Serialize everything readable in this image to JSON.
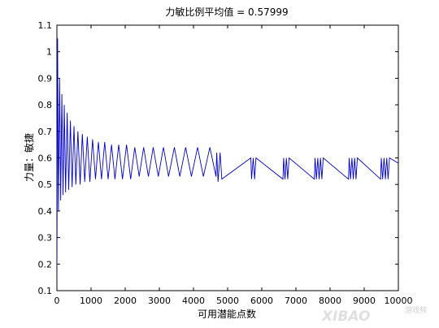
{
  "chart_data": {
    "type": "line",
    "title": "力敏比例平均值 = 0.57999",
    "xlabel": "可用潜能点数",
    "ylabel": "力量：敏捷",
    "xlim": [
      0,
      10000
    ],
    "ylim": [
      0.1,
      1.1
    ],
    "xticks": [
      0,
      1000,
      2000,
      3000,
      4000,
      5000,
      6000,
      7000,
      8000,
      9000,
      10000
    ],
    "yticks": [
      0.1,
      0.2,
      0.3,
      0.4,
      0.5,
      0.6,
      0.7,
      0.8,
      0.9,
      1,
      1.1
    ],
    "grid": false,
    "line_color": "#0000cc",
    "series": [
      {
        "points": [
          [
            0,
            0.14
          ],
          [
            20,
            1.05
          ],
          [
            45,
            0.4
          ],
          [
            80,
            0.9
          ],
          [
            110,
            0.44
          ],
          [
            145,
            0.84
          ],
          [
            180,
            0.46
          ],
          [
            215,
            0.8
          ],
          [
            255,
            0.47
          ],
          [
            300,
            0.77
          ],
          [
            345,
            0.48
          ],
          [
            395,
            0.74
          ],
          [
            445,
            0.49
          ],
          [
            500,
            0.72
          ],
          [
            555,
            0.5
          ],
          [
            615,
            0.7
          ],
          [
            680,
            0.5
          ],
          [
            745,
            0.69
          ],
          [
            815,
            0.51
          ],
          [
            890,
            0.68
          ],
          [
            965,
            0.51
          ],
          [
            1045,
            0.67
          ],
          [
            1130,
            0.52
          ],
          [
            1215,
            0.66
          ],
          [
            1305,
            0.52
          ],
          [
            1400,
            0.66
          ],
          [
            1500,
            0.52
          ],
          [
            1600,
            0.65
          ],
          [
            1700,
            0.52
          ],
          [
            1810,
            0.65
          ],
          [
            1920,
            0.52
          ],
          [
            2040,
            0.65
          ],
          [
            2160,
            0.52
          ],
          [
            2280,
            0.64
          ],
          [
            2410,
            0.53
          ],
          [
            2540,
            0.64
          ],
          [
            2680,
            0.53
          ],
          [
            2820,
            0.64
          ],
          [
            2970,
            0.53
          ],
          [
            3120,
            0.64
          ],
          [
            3270,
            0.53
          ],
          [
            3440,
            0.64
          ],
          [
            3600,
            0.53
          ],
          [
            3770,
            0.64
          ],
          [
            3940,
            0.53
          ],
          [
            4120,
            0.64
          ],
          [
            4290,
            0.53
          ],
          [
            4480,
            0.64
          ],
          [
            4660,
            0.53
          ],
          [
            4680,
            0.62
          ],
          [
            4720,
            0.51
          ],
          [
            4780,
            0.62
          ],
          [
            4830,
            0.52
          ],
          [
            5680,
            0.6
          ],
          [
            5700,
            0.52
          ],
          [
            5750,
            0.6
          ],
          [
            5790,
            0.52
          ],
          [
            5830,
            0.6
          ],
          [
            6620,
            0.52
          ],
          [
            6640,
            0.6
          ],
          [
            6680,
            0.52
          ],
          [
            6720,
            0.6
          ],
          [
            6760,
            0.52
          ],
          [
            6800,
            0.6
          ],
          [
            7540,
            0.52
          ],
          [
            7560,
            0.6
          ],
          [
            7600,
            0.52
          ],
          [
            7640,
            0.6
          ],
          [
            7680,
            0.52
          ],
          [
            7720,
            0.6
          ],
          [
            7760,
            0.52
          ],
          [
            7800,
            0.6
          ],
          [
            8540,
            0.52
          ],
          [
            8560,
            0.6
          ],
          [
            8600,
            0.52
          ],
          [
            8640,
            0.6
          ],
          [
            8680,
            0.52
          ],
          [
            8720,
            0.6
          ],
          [
            8760,
            0.52
          ],
          [
            8800,
            0.6
          ],
          [
            9480,
            0.52
          ],
          [
            9500,
            0.6
          ],
          [
            9540,
            0.52
          ],
          [
            9580,
            0.6
          ],
          [
            9620,
            0.52
          ],
          [
            9660,
            0.6
          ],
          [
            9700,
            0.52
          ],
          [
            9740,
            0.6
          ],
          [
            10000,
            0.58
          ]
        ]
      }
    ]
  },
  "watermark": {
    "main": "XIBAO",
    "sub": "游戏频"
  }
}
